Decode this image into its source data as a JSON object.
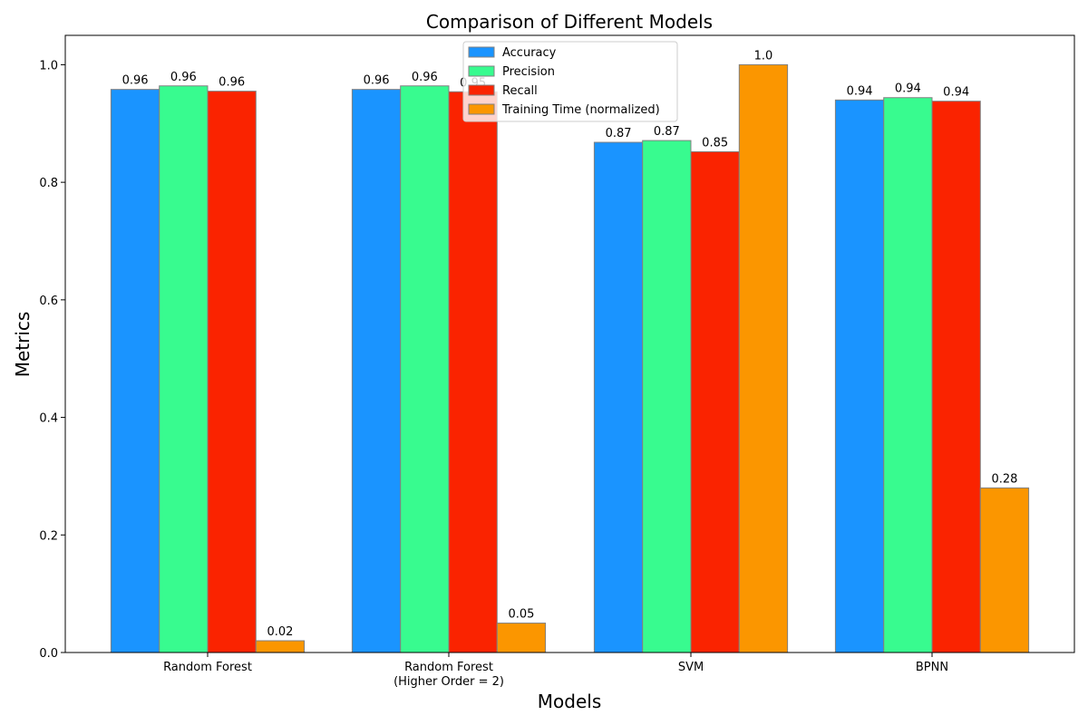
{
  "chart_data": {
    "type": "bar",
    "title": "Comparison of Different Models",
    "xlabel": "Models",
    "ylabel": "Metrics",
    "ylim": [
      0,
      1.05
    ],
    "yticks": [
      "0.0",
      "0.2",
      "0.4",
      "0.6",
      "0.8",
      "1.0"
    ],
    "grid": false,
    "legend_position": "top-center",
    "categories": [
      "Random Forest",
      "Random Forest\n(Higher Order = 2)",
      "SVM",
      "BPNN"
    ],
    "series": [
      {
        "name": "Accuracy",
        "color": "#1a94ff",
        "values": [
          0.958,
          0.958,
          0.868,
          0.94
        ],
        "labels": [
          "0.96",
          "0.96",
          "0.87",
          "0.94"
        ]
      },
      {
        "name": "Precision",
        "color": "#38fb8f",
        "values": [
          0.964,
          0.964,
          0.871,
          0.944
        ],
        "labels": [
          "0.96",
          "0.96",
          "0.87",
          "0.94"
        ]
      },
      {
        "name": "Recall",
        "color": "#fa2300",
        "values": [
          0.955,
          0.954,
          0.852,
          0.938
        ],
        "labels": [
          "0.96",
          "0.95",
          "0.85",
          "0.94"
        ]
      },
      {
        "name": "Training Time (normalized)",
        "color": "#fb9600",
        "values": [
          0.02,
          0.05,
          1.0,
          0.28
        ],
        "labels": [
          "0.02",
          "0.05",
          "1.0",
          "0.28"
        ]
      }
    ]
  }
}
